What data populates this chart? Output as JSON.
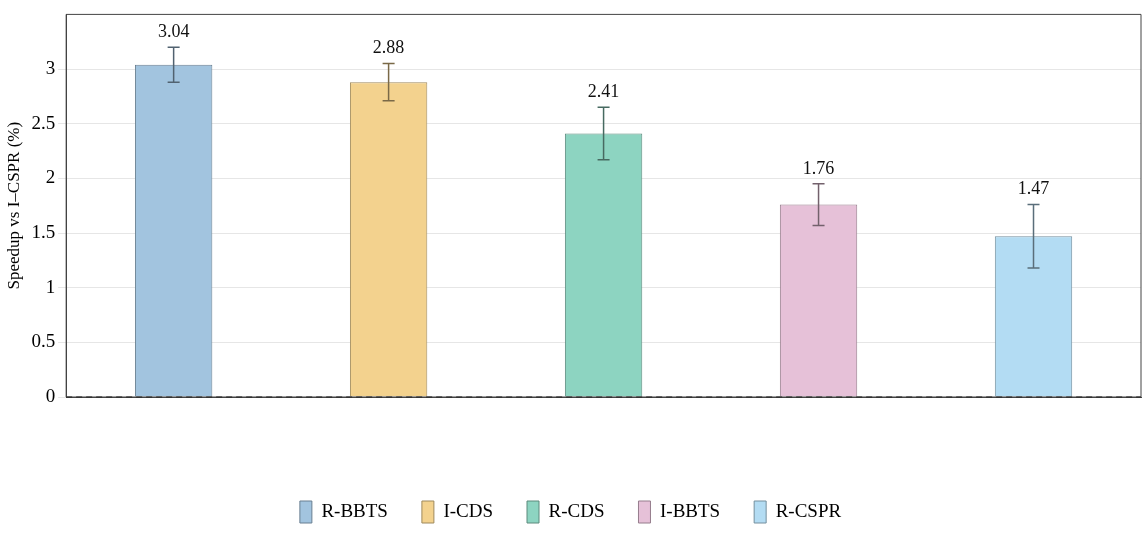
{
  "chart_data": {
    "type": "bar",
    "ylabel": "Speedup vs I–CSPR (%)",
    "categories": [
      null,
      null,
      null,
      null,
      null
    ],
    "series": [
      {
        "name": "R-BBTS",
        "color": "#a2c4df",
        "values": [
          3.04,
          null,
          null,
          null,
          null
        ],
        "errors": [
          0.16,
          null,
          null,
          null,
          null
        ]
      },
      {
        "name": "I-CDS",
        "color": "#f3d28e",
        "values": [
          null,
          2.88,
          null,
          null,
          null
        ],
        "errors": [
          null,
          0.17,
          null,
          null,
          null
        ]
      },
      {
        "name": "R-CDS",
        "color": "#8dd4c1",
        "values": [
          null,
          null,
          2.41,
          null,
          null
        ],
        "errors": [
          null,
          null,
          0.24,
          null,
          null
        ]
      },
      {
        "name": "I-BBTS",
        "color": "#e6c1d8",
        "values": [
          null,
          null,
          null,
          1.76,
          null
        ],
        "errors": [
          null,
          null,
          null,
          0.19,
          null
        ]
      },
      {
        "name": "R-CSPR",
        "color": "#b3dcf3",
        "values": [
          null,
          null,
          null,
          null,
          1.47
        ],
        "errors": [
          null,
          null,
          null,
          null,
          0.29
        ]
      }
    ],
    "ylim": [
      0,
      3.5
    ],
    "yticks": [
      0,
      0.5,
      1,
      1.5,
      2,
      2.5,
      3
    ],
    "grid": "y",
    "legend": "bottom",
    "data_labels": true,
    "ref_lines": [
      {
        "axis": "y",
        "value": 0,
        "line_style": "dashed",
        "color": "#000000"
      }
    ]
  }
}
